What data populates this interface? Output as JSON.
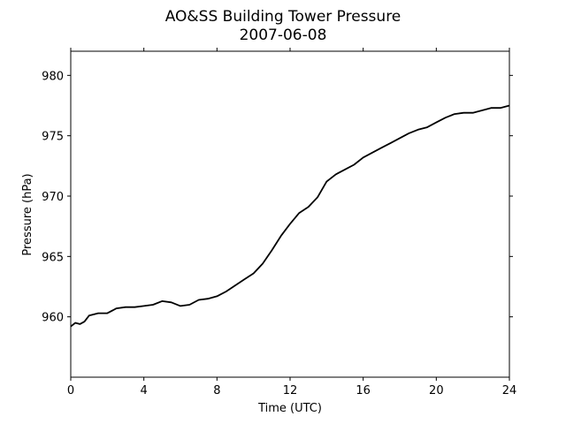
{
  "chart_data": {
    "type": "line",
    "title": "AO&SS Building Tower Pressure",
    "subtitle": "2007-06-08",
    "xlabel": "Time (UTC)",
    "ylabel": "Pressure (hPa)",
    "xlim": [
      0,
      24
    ],
    "ylim": [
      955,
      982
    ],
    "xticks": [
      0,
      4,
      8,
      12,
      16,
      20,
      24
    ],
    "yticks": [
      960,
      965,
      970,
      975,
      980
    ],
    "grid": false,
    "legend": "none",
    "line_color": "#000000",
    "series": [
      {
        "x": [
          0,
          0.25,
          0.5,
          0.75,
          1.0,
          1.5,
          2.0,
          2.5,
          3.0,
          3.5,
          4.0,
          4.5,
          5.0,
          5.5,
          6.0,
          6.5,
          7.0,
          7.5,
          8.0,
          8.5,
          9.0,
          9.5,
          10.0,
          10.5,
          11.0,
          11.5,
          12.0,
          12.5,
          13.0,
          13.5,
          14.0,
          14.5,
          15.0,
          15.5,
          16.0,
          16.5,
          17.0,
          17.5,
          18.0,
          18.5,
          19.0,
          19.5,
          20.0,
          20.5,
          21.0,
          21.5,
          22.0,
          22.5,
          23.0,
          23.5,
          24.0
        ],
        "y": [
          959.2,
          959.5,
          959.4,
          959.6,
          960.1,
          960.3,
          960.3,
          960.7,
          960.8,
          960.8,
          960.9,
          961.0,
          961.3,
          961.2,
          960.9,
          961.0,
          961.4,
          961.5,
          961.7,
          962.1,
          962.6,
          963.1,
          963.6,
          964.4,
          965.5,
          966.7,
          967.7,
          968.6,
          969.1,
          969.9,
          971.2,
          971.8,
          972.2,
          972.6,
          973.2,
          973.6,
          974.0,
          974.4,
          974.8,
          975.2,
          975.5,
          975.7,
          976.1,
          976.5,
          976.8,
          976.9,
          976.9,
          977.1,
          977.3,
          977.3,
          977.5
        ]
      }
    ]
  }
}
